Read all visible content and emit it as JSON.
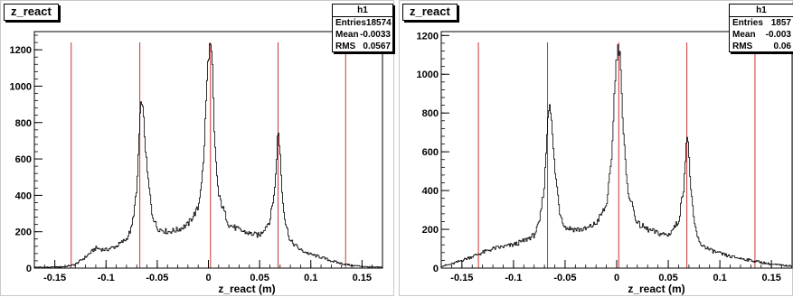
{
  "panels": [
    {
      "title": "z_react",
      "stats": {
        "name": "h1",
        "rows": [
          {
            "key": "Entries",
            "value": "18574"
          },
          {
            "key": "Mean",
            "value": "-0.0033"
          },
          {
            "key": "RMS",
            "value": "0.0567"
          }
        ]
      }
    },
    {
      "title": "z_react",
      "stats": {
        "name": "h1",
        "rows": [
          {
            "key": "Entries",
            "value": "1857"
          },
          {
            "key": "Mean",
            "value": "-0.003"
          },
          {
            "key": "RMS",
            "value": "0.06"
          }
        ]
      }
    }
  ],
  "colors": {
    "histogram": "#000000",
    "marker_lines": "#cc3333",
    "frame": "#000000"
  },
  "chart_data": [
    {
      "type": "line",
      "title": "z_react",
      "xlabel": "z_react (m)",
      "ylabel": "",
      "xlim": [
        -0.17,
        0.17
      ],
      "ylim": [
        0,
        1300
      ],
      "xticks": [
        -0.15,
        -0.1,
        -0.05,
        0,
        0.05,
        0.1,
        0.15
      ],
      "xtick_labels": [
        "-0.15",
        "-0.1",
        "-0.05",
        "0",
        "0.05",
        "0.1",
        "0.15"
      ],
      "yticks": [
        0,
        200,
        400,
        600,
        800,
        1000,
        1200
      ],
      "ytick_labels": [
        "0",
        "200",
        "400",
        "600",
        "800",
        "1000",
        "1200"
      ],
      "vertical_lines": [
        -0.134,
        -0.067,
        0.002,
        0.068,
        0.134
      ],
      "x": [
        -0.17,
        -0.16,
        -0.15,
        -0.14,
        -0.13,
        -0.12,
        -0.11,
        -0.1,
        -0.09,
        -0.08,
        -0.075,
        -0.07,
        -0.067,
        -0.065,
        -0.063,
        -0.06,
        -0.055,
        -0.05,
        -0.04,
        -0.03,
        -0.02,
        -0.01,
        -0.005,
        -0.002,
        0.0,
        0.002,
        0.004,
        0.006,
        0.01,
        0.02,
        0.03,
        0.04,
        0.05,
        0.06,
        0.065,
        0.068,
        0.07,
        0.072,
        0.075,
        0.08,
        0.09,
        0.1,
        0.11,
        0.12,
        0.13,
        0.14,
        0.15,
        0.16,
        0.17
      ],
      "y": [
        5,
        5,
        5,
        8,
        20,
        60,
        110,
        100,
        120,
        160,
        220,
        420,
        800,
        940,
        800,
        550,
        300,
        220,
        200,
        210,
        240,
        330,
        560,
        950,
        1170,
        1235,
        1100,
        700,
        400,
        240,
        210,
        190,
        180,
        260,
        440,
        760,
        650,
        420,
        260,
        150,
        100,
        75,
        60,
        40,
        25,
        15,
        10,
        5,
        5
      ]
    },
    {
      "type": "line",
      "title": "z_react",
      "xlabel": "z_react (m)",
      "ylabel": "",
      "xlim": [
        -0.17,
        0.17
      ],
      "ylim": [
        0,
        1220
      ],
      "xticks": [
        -0.15,
        -0.1,
        -0.05,
        0,
        0.05,
        0.1,
        0.15
      ],
      "xtick_labels": [
        "-0.15",
        "-0.1",
        "-0.05",
        "0",
        "0.05",
        "0.1",
        "0.15"
      ],
      "yticks": [
        0,
        200,
        400,
        600,
        800,
        1000,
        1200
      ],
      "ytick_labels": [
        "0",
        "200",
        "400",
        "600",
        "800",
        "1000",
        "1200"
      ],
      "vertical_lines": [
        -0.134,
        -0.067,
        0.002,
        0.068,
        0.134
      ],
      "x": [
        -0.17,
        -0.16,
        -0.15,
        -0.14,
        -0.13,
        -0.12,
        -0.11,
        -0.1,
        -0.09,
        -0.08,
        -0.075,
        -0.07,
        -0.067,
        -0.065,
        -0.063,
        -0.06,
        -0.055,
        -0.05,
        -0.04,
        -0.03,
        -0.02,
        -0.01,
        -0.005,
        -0.002,
        0.0,
        0.002,
        0.004,
        0.006,
        0.01,
        0.02,
        0.03,
        0.04,
        0.05,
        0.06,
        0.065,
        0.068,
        0.07,
        0.072,
        0.075,
        0.08,
        0.09,
        0.1,
        0.11,
        0.12,
        0.13,
        0.14,
        0.15,
        0.16,
        0.17
      ],
      "y": [
        10,
        20,
        40,
        60,
        80,
        100,
        110,
        120,
        140,
        170,
        230,
        430,
        760,
        880,
        740,
        520,
        290,
        210,
        200,
        200,
        230,
        320,
        540,
        920,
        1100,
        1140,
        1060,
        750,
        420,
        230,
        200,
        180,
        170,
        240,
        420,
        690,
        600,
        400,
        240,
        130,
        95,
        75,
        60,
        50,
        40,
        30,
        20,
        15,
        10
      ]
    }
  ]
}
